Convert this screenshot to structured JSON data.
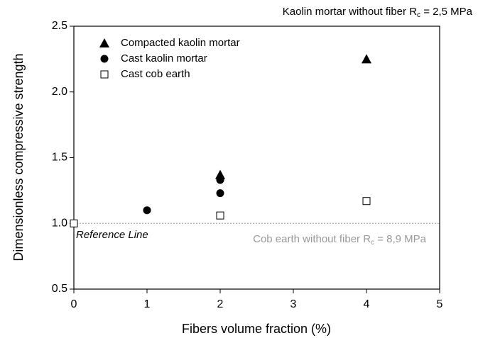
{
  "chart_data": {
    "type": "scatter",
    "xlabel": "Fibers volume fraction (%)",
    "ylabel": "Dimensionless compressive strength",
    "xlim": [
      0,
      5
    ],
    "xticks": [
      0,
      1,
      2,
      3,
      4,
      5
    ],
    "ylim": [
      0.5,
      2.5
    ],
    "yticks": [
      0.5,
      {
        "value": 1.0,
        "label": "1.0"
      },
      1.5,
      {
        "value": 2.0,
        "label": "2.0"
      },
      2.5
    ],
    "series": [
      {
        "name": "Compacted kaolin mortar",
        "color": "#000000",
        "marker": "triangle",
        "x": [
          2,
          4
        ],
        "values": [
          1.37,
          2.25
        ]
      },
      {
        "name": "Cast kaolin mortar",
        "color": "#000000",
        "marker": "circle",
        "x": [
          1,
          2,
          2
        ],
        "values": [
          1.1,
          1.33,
          1.23
        ]
      },
      {
        "name": "Cast cob earth",
        "color": "#000000",
        "marker": "open-square",
        "x": [
          0,
          2,
          4
        ],
        "values": [
          1.0,
          1.06,
          1.17
        ]
      }
    ],
    "reference_line": {
      "value": 1.0,
      "label": "Reference Line",
      "color": "#999999"
    },
    "annotations": [
      {
        "text": "Kaolin mortar without fiber R",
        "sub": "c",
        "after": " = 2,5 MPa",
        "color": "#000000"
      },
      {
        "text": "Cob earth without fiber R",
        "sub": "c",
        "after": " = 8,9 MPa",
        "color": "#999999"
      }
    ],
    "legend": "upper left"
  }
}
